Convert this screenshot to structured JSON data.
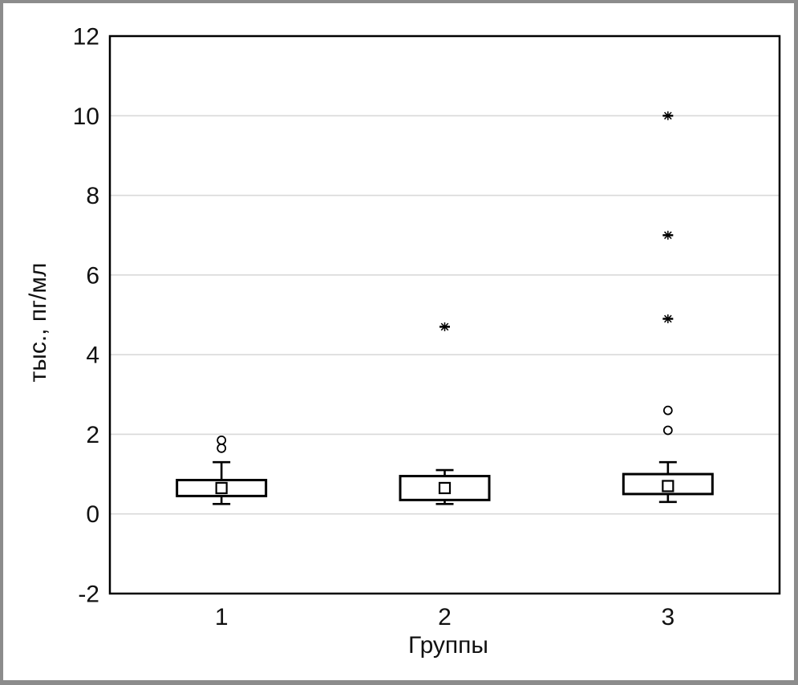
{
  "frame": {
    "background": "#ffffff",
    "border_color": "#8c8c8c"
  },
  "chart_data": {
    "type": "box",
    "xlabel": "Группы",
    "ylabel": "тыс., пг/мл",
    "categories": [
      "1",
      "2",
      "3"
    ],
    "ylim": [
      -2,
      12
    ],
    "y_ticks": [
      12,
      10,
      8,
      6,
      4,
      2,
      0,
      -2
    ],
    "grid": "horizontal",
    "gridline_color": "#d9d9d9",
    "axis_color": "#000000",
    "text_color": "#111111",
    "legend_position": "none",
    "groups": [
      {
        "category": "1",
        "whisker_low": 0.25,
        "q1": 0.45,
        "median": 0.65,
        "q3": 0.85,
        "whisker_high": 1.3,
        "outliers": [
          1.65,
          1.85
        ],
        "extremes": []
      },
      {
        "category": "2",
        "whisker_low": 0.25,
        "q1": 0.35,
        "median": 0.65,
        "q3": 0.95,
        "whisker_high": 1.1,
        "outliers": [],
        "extremes": [
          4.7
        ]
      },
      {
        "category": "3",
        "whisker_low": 0.3,
        "q1": 0.5,
        "median": 0.7,
        "q3": 1.0,
        "whisker_high": 1.3,
        "outliers": [
          2.1,
          2.6
        ],
        "extremes": [
          4.9,
          7.0,
          10.0
        ]
      }
    ]
  }
}
